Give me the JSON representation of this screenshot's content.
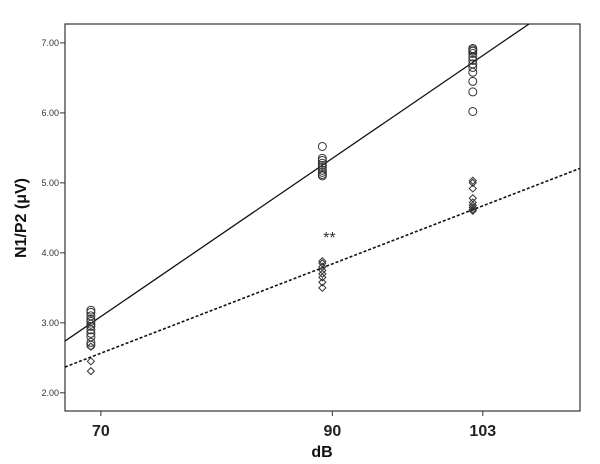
{
  "chart_data": {
    "type": "scatter",
    "title": "",
    "xlabel": "dB",
    "ylabel": "N1/P2 (μV)",
    "xlim": [
      66.9,
      111.4
    ],
    "ylim": [
      1.74,
      7.27
    ],
    "x_ticks": [
      70,
      90,
      103
    ],
    "y_ticks": [
      2.0,
      3.0,
      4.0,
      5.0,
      6.0,
      7.0
    ],
    "grid": false,
    "annotation": {
      "text": "**",
      "x": 90,
      "y": 4.27
    },
    "series": [
      {
        "marker": "circle",
        "points": [
          {
            "x": 70,
            "y": [
              3.18,
              3.15,
              3.1,
              3.05,
              3.02,
              2.98,
              2.95,
              2.9,
              2.85,
              2.8,
              2.72,
              2.68
            ]
          },
          {
            "x": 90,
            "y": [
              5.52,
              5.35,
              5.32,
              5.28,
              5.25,
              5.22,
              5.18,
              5.15,
              5.12,
              5.1
            ]
          },
          {
            "x": 103,
            "y": [
              6.92,
              6.9,
              6.88,
              6.85,
              6.8,
              6.75,
              6.7,
              6.65,
              6.58,
              6.45,
              6.3,
              6.02
            ]
          }
        ],
        "fit": {
          "style": "solid",
          "slope": 0.113,
          "intercept": -4.82
        }
      },
      {
        "marker": "diamond",
        "points": [
          {
            "x": 70,
            "y": [
              2.66,
              2.45,
              2.31
            ]
          },
          {
            "x": 90,
            "y": [
              3.88,
              3.85,
              3.8,
              3.75,
              3.7,
              3.65,
              3.58,
              3.5
            ]
          },
          {
            "x": 103,
            "y": [
              5.03,
              5.0,
              4.92,
              4.78,
              4.72,
              4.68,
              4.65,
              4.62,
              4.6
            ]
          }
        ],
        "fit": {
          "style": "dotted",
          "slope": 0.0638,
          "intercept": -1.9
        }
      }
    ]
  }
}
